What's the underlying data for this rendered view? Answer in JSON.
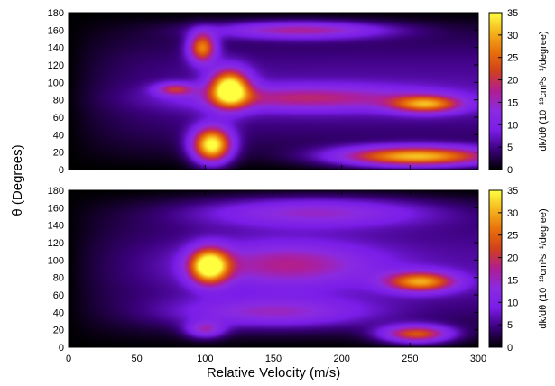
{
  "chart_data": [
    {
      "type": "heatmap",
      "panel": "top",
      "xlim": [
        0,
        300
      ],
      "ylim": [
        0,
        180
      ],
      "x_ticks": [
        0,
        50,
        100,
        150,
        200,
        250,
        300
      ],
      "y_ticks": [
        0,
        20,
        40,
        60,
        80,
        100,
        120,
        140,
        160,
        180
      ],
      "colorbar": {
        "range": [
          0,
          35
        ],
        "ticks": [
          0,
          5,
          10,
          15,
          20,
          25,
          30,
          35
        ],
        "label": "dk/dθ (10⁻¹³cm³s⁻¹/degree)"
      },
      "background_level": 6,
      "features": [
        {
          "x": 105,
          "y": 28,
          "peak": 34,
          "sx": 10,
          "sy": 14
        },
        {
          "x": 118,
          "y": 93,
          "peak": 33,
          "sx": 10,
          "sy": 15
        },
        {
          "x": 98,
          "y": 140,
          "peak": 24,
          "sx": 7,
          "sy": 12
        },
        {
          "x": 255,
          "y": 15,
          "peak": 30,
          "sx": 40,
          "sy": 8
        },
        {
          "x": 262,
          "y": 75,
          "peak": 22,
          "sx": 18,
          "sy": 7
        },
        {
          "x": 170,
          "y": 160,
          "peak": 15,
          "sx": 45,
          "sy": 7
        },
        {
          "x": 175,
          "y": 82,
          "peak": 13,
          "sx": 60,
          "sy": 10
        },
        {
          "x": 78,
          "y": 92,
          "peak": 14,
          "sx": 10,
          "sy": 5
        }
      ]
    },
    {
      "type": "heatmap",
      "panel": "bottom",
      "xlim": [
        0,
        300
      ],
      "ylim": [
        0,
        180
      ],
      "x_ticks": [
        0,
        50,
        100,
        150,
        200,
        250,
        300
      ],
      "y_ticks": [
        0,
        20,
        40,
        60,
        80,
        100,
        120,
        140,
        160,
        180
      ],
      "colorbar": {
        "range": [
          0,
          35
        ],
        "ticks": [
          0,
          5,
          10,
          15,
          20,
          25,
          30,
          35
        ],
        "label": "dk/dθ (10⁻¹³cm³s⁻¹/degree)"
      },
      "background_level": 6,
      "features": [
        {
          "x": 103,
          "y": 93,
          "peak": 33,
          "sx": 10,
          "sy": 14
        },
        {
          "x": 258,
          "y": 75,
          "peak": 24,
          "sx": 18,
          "sy": 8
        },
        {
          "x": 255,
          "y": 15,
          "peak": 22,
          "sx": 18,
          "sy": 7
        },
        {
          "x": 160,
          "y": 95,
          "peak": 12,
          "sx": 45,
          "sy": 18
        },
        {
          "x": 180,
          "y": 155,
          "peak": 12,
          "sx": 60,
          "sy": 12
        },
        {
          "x": 100,
          "y": 20,
          "peak": 12,
          "sx": 10,
          "sy": 7
        },
        {
          "x": 150,
          "y": 40,
          "peak": 11,
          "sx": 50,
          "sy": 12
        }
      ]
    }
  ],
  "shared_axes": {
    "xlabel": "Relative Velocity (m/s)",
    "ylabel": "θ (Degrees)"
  },
  "colormap_stops": [
    "#000000",
    "#3a007a",
    "#7a1de8",
    "#8a2be2",
    "#b01e93",
    "#d0401e",
    "#e8700a",
    "#f5b41e",
    "#ffff40"
  ]
}
